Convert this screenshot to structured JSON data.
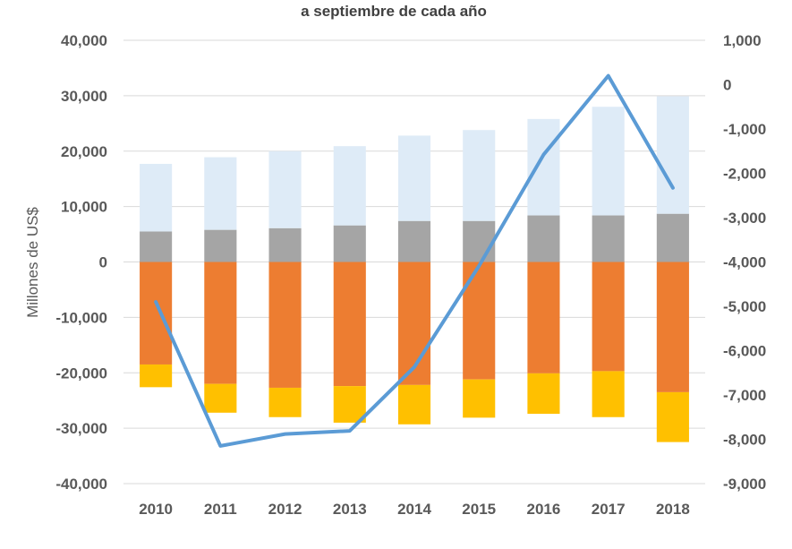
{
  "chart_data": {
    "type": "bar",
    "title": "a septiembre de cada año",
    "ylabel": "Millones de US$",
    "y2label": "",
    "categories": [
      "2010",
      "2011",
      "2012",
      "2013",
      "2014",
      "2015",
      "2016",
      "2017",
      "2018"
    ],
    "ylim": [
      -40000,
      40000
    ],
    "y2lim": [
      -9000,
      1000
    ],
    "y_ticks": [
      "40,000",
      "30,000",
      "20,000",
      "10,000",
      "0",
      "-10,000",
      "-20,000",
      "-30,000",
      "-40,000"
    ],
    "y2_ticks": [
      "1,000",
      "0",
      "-1,000",
      "-2,000",
      "-3,000",
      "-4,000",
      "-5,000",
      "-6,000",
      "-7,000",
      "-8,000",
      "-9,000"
    ],
    "grid": true,
    "legend": "none",
    "series": [
      {
        "stack": "positive",
        "color": "#a5a5a5",
        "values": [
          5500,
          5800,
          6100,
          6600,
          7400,
          7400,
          8400,
          8400,
          8700
        ]
      },
      {
        "stack": "positive",
        "color": "#deebf7",
        "values": [
          12200,
          13100,
          13900,
          14300,
          15400,
          16400,
          17400,
          19600,
          21200
        ]
      },
      {
        "stack": "negative",
        "color": "#ed7d31",
        "values": [
          -18500,
          -22000,
          -22700,
          -22400,
          -22200,
          -21200,
          -20100,
          -19700,
          -23500
        ]
      },
      {
        "stack": "negative",
        "color": "#ffc000",
        "values": [
          -4100,
          -5200,
          -5300,
          -6600,
          -7100,
          -6900,
          -7300,
          -8300,
          -9000
        ]
      },
      {
        "type": "line",
        "axis": "right",
        "color": "#5b9bd5",
        "values": [
          -4900,
          -8150,
          -7880,
          -7810,
          -6370,
          -4090,
          -1580,
          200,
          -2330
        ]
      }
    ]
  }
}
